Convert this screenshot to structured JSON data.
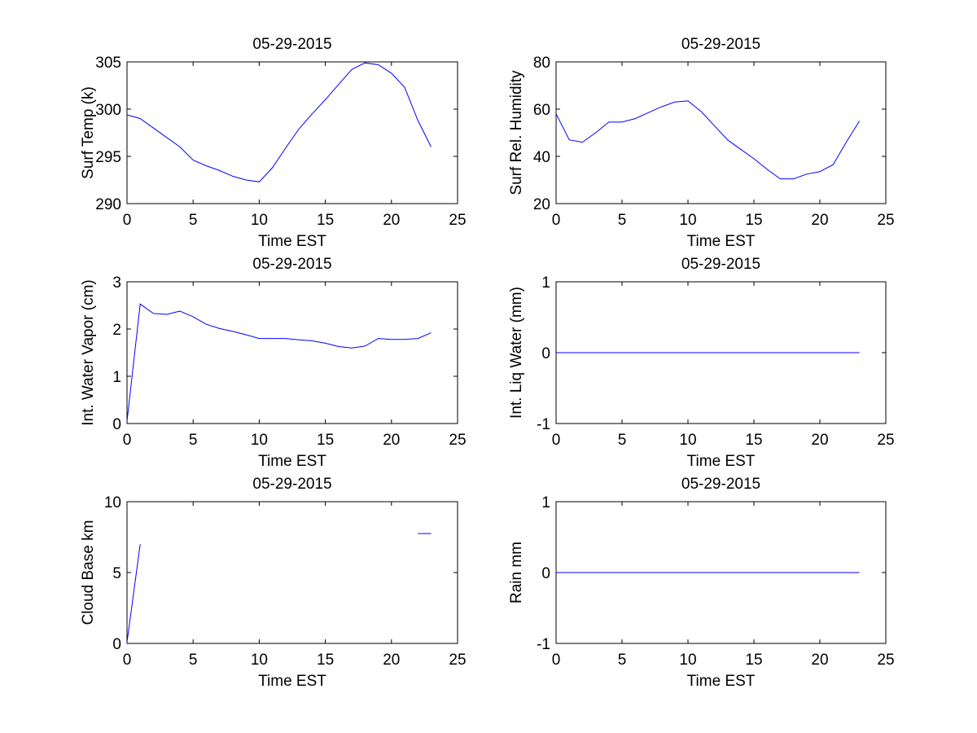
{
  "chart_data": [
    {
      "type": "line",
      "title": "05-29-2015",
      "xlabel": "Time EST",
      "ylabel": "Surf Temp (k)",
      "xlim": [
        0,
        25
      ],
      "ylim": [
        290,
        305
      ],
      "xticks": [
        0,
        5,
        10,
        15,
        20,
        25
      ],
      "yticks": [
        290,
        295,
        300,
        305
      ],
      "color": "#0000ff",
      "x": [
        0,
        1,
        2,
        3,
        4,
        5,
        6,
        7,
        8,
        9,
        10,
        11,
        12,
        13,
        14,
        15,
        16,
        17,
        18,
        19,
        20,
        21,
        22,
        23
      ],
      "y": [
        299.4,
        299.0,
        298.0,
        297.0,
        296.0,
        294.6,
        294.0,
        293.5,
        292.9,
        292.5,
        292.3,
        293.8,
        295.9,
        297.9,
        299.5,
        301.0,
        302.6,
        304.2,
        304.9,
        304.7,
        303.8,
        302.3,
        298.8,
        296.0
      ]
    },
    {
      "type": "line",
      "title": "05-29-2015",
      "xlabel": "Time EST",
      "ylabel": "Surf Rel. Humidity",
      "xlim": [
        0,
        25
      ],
      "ylim": [
        20,
        80
      ],
      "xticks": [
        0,
        5,
        10,
        15,
        20,
        25
      ],
      "yticks": [
        20,
        40,
        60,
        80
      ],
      "color": "#0000ff",
      "x": [
        0,
        1,
        2,
        3,
        4,
        5,
        6,
        7,
        8,
        9,
        10,
        11,
        12,
        13,
        14,
        15,
        16,
        17,
        18,
        19,
        20,
        21,
        22,
        23
      ],
      "y": [
        58,
        47,
        46,
        50,
        54.5,
        54.5,
        56,
        58.5,
        61,
        63,
        63.5,
        59,
        53,
        47,
        43,
        39,
        34.5,
        30.5,
        30.5,
        32.5,
        33.5,
        36.5,
        46,
        55
      ]
    },
    {
      "type": "line",
      "title": "05-29-2015",
      "xlabel": "Time EST",
      "ylabel": "Int. Water Vapor (cm)",
      "xlim": [
        0,
        25
      ],
      "ylim": [
        0,
        3
      ],
      "xticks": [
        0,
        5,
        10,
        15,
        20,
        25
      ],
      "yticks": [
        0,
        1,
        2,
        3
      ],
      "color": "#0000ff",
      "x": [
        0,
        1,
        2,
        3,
        4,
        5,
        6,
        7,
        8,
        9,
        10,
        11,
        12,
        13,
        14,
        15,
        16,
        17,
        18,
        19,
        20,
        21,
        22,
        23
      ],
      "y": [
        0.05,
        2.53,
        2.33,
        2.31,
        2.38,
        2.26,
        2.1,
        2.01,
        1.95,
        1.88,
        1.8,
        1.8,
        1.8,
        1.77,
        1.75,
        1.7,
        1.63,
        1.6,
        1.64,
        1.8,
        1.78,
        1.78,
        1.8,
        1.92
      ]
    },
    {
      "type": "line",
      "title": "05-29-2015",
      "xlabel": "Time EST",
      "ylabel": "Int. Liq Water (mm)",
      "xlim": [
        0,
        25
      ],
      "ylim": [
        -1,
        1
      ],
      "xticks": [
        0,
        5,
        10,
        15,
        20,
        25
      ],
      "yticks": [
        -1,
        0,
        1
      ],
      "color": "#0000ff",
      "x": [
        0,
        1,
        2,
        3,
        4,
        5,
        6,
        7,
        8,
        9,
        10,
        11,
        12,
        13,
        14,
        15,
        16,
        17,
        18,
        19,
        20,
        21,
        22,
        23
      ],
      "y": [
        0,
        0,
        0,
        0,
        0,
        0,
        0,
        0,
        0,
        0,
        0,
        0,
        0,
        0,
        0,
        0,
        0,
        0,
        0,
        0,
        0,
        0,
        0,
        0
      ]
    },
    {
      "type": "line",
      "title": "05-29-2015",
      "xlabel": "Time EST",
      "ylabel": "Cloud Base km",
      "xlim": [
        0,
        25
      ],
      "ylim": [
        0,
        10
      ],
      "xticks": [
        0,
        5,
        10,
        15,
        20,
        25
      ],
      "yticks": [
        0,
        5,
        10
      ],
      "color": "#0000ff",
      "x": [
        0,
        1,
        2,
        3,
        4,
        5,
        6,
        7,
        8,
        9,
        10,
        11,
        12,
        13,
        14,
        15,
        16,
        17,
        18,
        19,
        20,
        21,
        22,
        23
      ],
      "y": [
        0.1,
        7.0,
        null,
        null,
        null,
        null,
        null,
        null,
        null,
        null,
        null,
        null,
        null,
        null,
        null,
        null,
        null,
        null,
        null,
        null,
        null,
        null,
        7.75,
        7.75
      ]
    },
    {
      "type": "line",
      "title": "05-29-2015",
      "xlabel": "Time EST",
      "ylabel": "Rain mm",
      "xlim": [
        0,
        25
      ],
      "ylim": [
        -1,
        1
      ],
      "xticks": [
        0,
        5,
        10,
        15,
        20,
        25
      ],
      "yticks": [
        -1,
        0,
        1
      ],
      "color": "#0000ff",
      "x": [
        0,
        1,
        2,
        3,
        4,
        5,
        6,
        7,
        8,
        9,
        10,
        11,
        12,
        13,
        14,
        15,
        16,
        17,
        18,
        19,
        20,
        21,
        22,
        23
      ],
      "y": [
        0,
        0,
        0,
        0,
        0,
        0,
        0,
        0,
        0,
        0,
        0,
        0,
        0,
        0,
        0,
        0,
        0,
        0,
        0,
        0,
        0,
        0,
        0,
        0
      ]
    }
  ]
}
